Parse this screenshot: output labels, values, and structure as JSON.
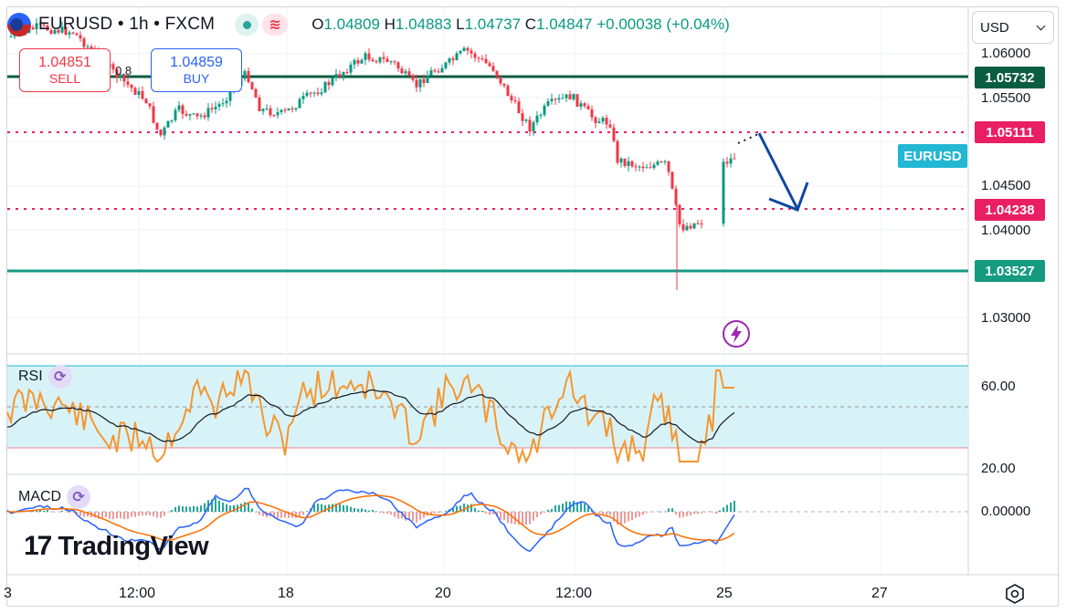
{
  "header": {
    "symbol_line": "EURUSD • 1h • FXCM",
    "ohlc": {
      "open_key": "O",
      "open": "1.04809",
      "high_key": "H",
      "high": "1.04883",
      "low_key": "L",
      "low": "1.04737",
      "close_key": "C",
      "close": "1.04847",
      "change": "+0.00038 (+0.04%)"
    },
    "status_wave": "≋"
  },
  "trade": {
    "sell_price": "1.04851",
    "sell_label": "SELL",
    "buy_price": "1.04859",
    "buy_label": "BUY",
    "spread": "0.8"
  },
  "currency_select": {
    "value": "USD"
  },
  "price_axis": {
    "labels": [
      "1.06000",
      "1.05500",
      "1.04500",
      "1.04000",
      "1.03000"
    ],
    "tags": {
      "resistance": "1.05732",
      "upper_dotted": "1.05111",
      "lower_dotted": "1.04238",
      "support": "1.03527"
    },
    "symbol_tag": "EURUSD"
  },
  "rsi": {
    "label": "RSI",
    "axis": [
      "60.00",
      "20.00"
    ],
    "icon": "cycle-icon"
  },
  "macd": {
    "label": "MACD",
    "axis": [
      "0.00000"
    ],
    "icon": "cycle-icon"
  },
  "time_axis": [
    "3",
    "12:00",
    "18",
    "20",
    "12:00",
    "25",
    "27"
  ],
  "logo": {
    "mark": "17",
    "text": "TradingView"
  },
  "colors": {
    "up": "#089981",
    "down": "#f23645",
    "resistance": "#0b5d3f",
    "support": "#159b80",
    "dotted": "#e91e63",
    "rsi_line": "#f5962f",
    "rsi_band": "#d8f3f8",
    "arrow": "#0d47a1",
    "macd_fast": "#2962ff",
    "macd_slow": "#ff6d00"
  }
}
